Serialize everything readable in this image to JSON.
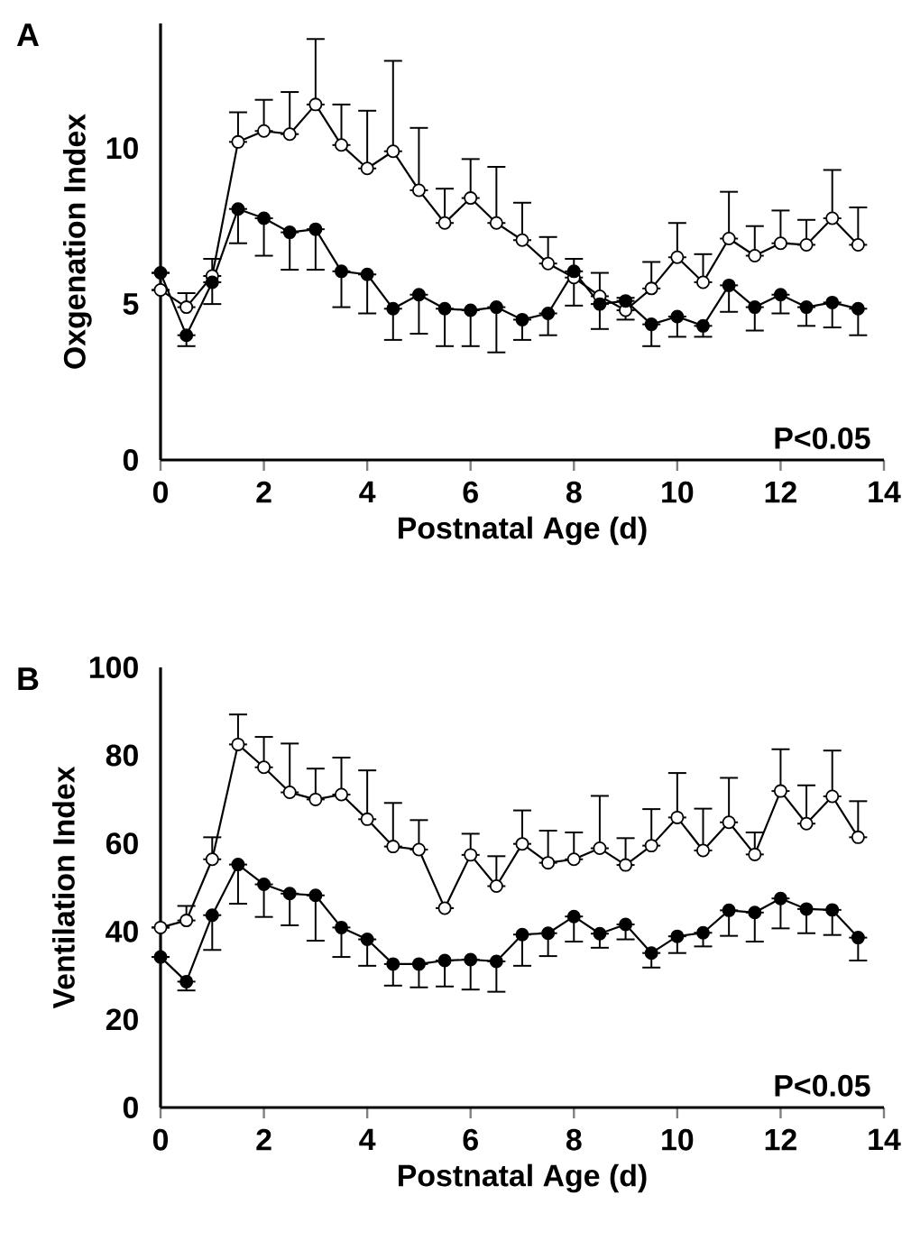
{
  "chart_data": [
    {
      "type": "line",
      "title": "A",
      "xlabel": "Postnatal Age (d)",
      "ylabel": "Oxgenation Index",
      "annotations": [
        "P<0.05"
      ],
      "marker": "circle",
      "line_style": "solid",
      "x": [
        0,
        0.5,
        1,
        1.5,
        2,
        2.5,
        3,
        3.5,
        4,
        4.5,
        5,
        5.5,
        6,
        6.5,
        7,
        7.5,
        8,
        8.5,
        9,
        9.5,
        10,
        10.5,
        11,
        11.5,
        12,
        12.5,
        13,
        13.5
      ],
      "xlim": [
        0,
        14
      ],
      "xticks": [
        0,
        2,
        4,
        6,
        8,
        10,
        12,
        14
      ],
      "ylim": [
        0,
        14
      ],
      "yticks": [
        0,
        5,
        10
      ],
      "series": [
        {
          "color": "#ffffff",
          "values": [
            5.45,
            4.9,
            5.9,
            10.2,
            10.55,
            10.45,
            11.4,
            10.1,
            9.35,
            9.9,
            8.65,
            7.6,
            8.4,
            7.6,
            7.05,
            6.3,
            5.85,
            5.25,
            4.8,
            5.5,
            6.5,
            5.7,
            7.1,
            6.55,
            6.95,
            6.9,
            7.75,
            6.9
          ],
          "errors": [
            null,
            [
              4.9,
              5.35
            ],
            [
              5.9,
              6.45
            ],
            [
              10.2,
              11.15
            ],
            [
              10.55,
              11.55
            ],
            [
              10.45,
              11.8
            ],
            [
              11.4,
              13.5
            ],
            [
              10.1,
              11.4
            ],
            [
              9.35,
              11.2
            ],
            [
              9.9,
              12.8
            ],
            [
              8.65,
              10.65
            ],
            [
              7.6,
              8.7
            ],
            [
              8.4,
              9.65
            ],
            [
              7.6,
              9.4
            ],
            [
              7.05,
              8.25
            ],
            [
              6.3,
              7.15
            ],
            [
              5.85,
              6.45
            ],
            [
              5.25,
              6.0
            ],
            [
              4.8,
              5.2
            ],
            [
              5.5,
              6.35
            ],
            [
              6.5,
              7.6
            ],
            [
              5.7,
              6.6
            ],
            [
              7.1,
              8.6
            ],
            [
              6.55,
              7.5
            ],
            [
              6.95,
              8.0
            ],
            [
              6.9,
              7.7
            ],
            [
              7.75,
              9.3
            ],
            [
              6.9,
              8.1
            ]
          ]
        },
        {
          "color": "#000000",
          "values": [
            6.0,
            4.0,
            5.7,
            8.05,
            7.75,
            7.3,
            7.4,
            6.05,
            5.95,
            4.85,
            5.3,
            4.85,
            4.8,
            4.9,
            4.5,
            4.7,
            6.05,
            5.0,
            5.1,
            4.35,
            4.6,
            4.3,
            5.6,
            4.9,
            5.3,
            4.9,
            5.05,
            4.85
          ],
          "errors": [
            null,
            [
              3.65,
              4.0
            ],
            [
              5.0,
              5.7
            ],
            [
              6.95,
              8.05
            ],
            [
              6.55,
              7.75
            ],
            [
              6.1,
              7.3
            ],
            [
              6.1,
              7.4
            ],
            [
              4.9,
              6.05
            ],
            [
              4.7,
              5.95
            ],
            [
              3.85,
              4.85
            ],
            [
              4.05,
              5.3
            ],
            [
              3.65,
              4.85
            ],
            [
              3.65,
              4.8
            ],
            [
              3.45,
              4.9
            ],
            [
              3.85,
              4.5
            ],
            [
              4.0,
              4.7
            ],
            [
              4.95,
              6.05
            ],
            [
              4.2,
              5.0
            ],
            [
              4.5,
              5.1
            ],
            [
              3.65,
              4.35
            ],
            [
              3.95,
              4.6
            ],
            [
              3.95,
              4.3
            ],
            [
              4.75,
              5.6
            ],
            [
              4.15,
              4.9
            ],
            [
              4.7,
              5.3
            ],
            [
              4.3,
              4.9
            ],
            [
              4.25,
              5.05
            ],
            [
              4.0,
              4.85
            ]
          ]
        }
      ]
    },
    {
      "type": "line",
      "title": "B",
      "xlabel": "Postnatal Age (d)",
      "ylabel": "Ventilation Index",
      "annotations": [
        "P<0.05"
      ],
      "marker": "circle",
      "line_style": "solid",
      "x": [
        0,
        0.5,
        1,
        1.5,
        2,
        2.5,
        3,
        3.5,
        4,
        4.5,
        5,
        5.5,
        6,
        6.5,
        7,
        7.5,
        8,
        8.5,
        9,
        9.5,
        10,
        10.5,
        11,
        11.5,
        12,
        12.5,
        13,
        13.5
      ],
      "xlim": [
        0,
        14
      ],
      "xticks": [
        0,
        2,
        4,
        6,
        8,
        10,
        12,
        14
      ],
      "ylim": [
        0,
        100
      ],
      "yticks": [
        0,
        20,
        40,
        60,
        80,
        100
      ],
      "series": [
        {
          "color": "#ffffff",
          "values": [
            40.9,
            42.5,
            56.4,
            82.5,
            77.3,
            71.6,
            70.0,
            71.1,
            65.5,
            59.3,
            58.6,
            45.3,
            57.4,
            50.3,
            59.9,
            55.6,
            56.4,
            58.9,
            55.1,
            59.5,
            65.9,
            58.4,
            64.8,
            57.5,
            71.9,
            64.5,
            70.7,
            61.4
          ],
          "errors": [
            null,
            [
              42.5,
              45.8
            ],
            [
              56.4,
              61.4
            ],
            [
              82.5,
              89.3
            ],
            [
              77.3,
              84.2
            ],
            [
              71.6,
              82.7
            ],
            [
              70.0,
              77.0
            ],
            [
              71.1,
              79.5
            ],
            [
              65.5,
              76.6
            ],
            [
              59.3,
              69.2
            ],
            [
              58.6,
              65.3
            ],
            null,
            [
              57.4,
              62.2
            ],
            [
              50.3,
              57.1
            ],
            [
              59.9,
              67.5
            ],
            [
              55.6,
              62.9
            ],
            [
              56.4,
              62.5
            ],
            [
              58.9,
              70.8
            ],
            [
              55.1,
              61.2
            ],
            [
              59.5,
              67.8
            ],
            [
              65.9,
              76.0
            ],
            [
              58.4,
              67.9
            ],
            [
              64.8,
              74.9
            ],
            [
              57.5,
              62.5
            ],
            [
              71.9,
              81.4
            ],
            [
              64.5,
              73.2
            ],
            [
              70.7,
              81.1
            ],
            [
              61.4,
              69.6
            ]
          ]
        },
        {
          "color": "#000000",
          "values": [
            34.2,
            28.6,
            43.7,
            55.2,
            50.7,
            48.6,
            48.2,
            40.9,
            38.2,
            32.6,
            32.6,
            33.4,
            33.6,
            33.2,
            39.3,
            39.6,
            43.4,
            39.5,
            41.6,
            35.1,
            38.9,
            39.7,
            44.8,
            44.3,
            47.5,
            45.1,
            44.9,
            38.6
          ],
          "errors": [
            null,
            [
              26.6,
              28.6
            ],
            [
              35.8,
              43.7
            ],
            [
              46.3,
              55.2
            ],
            [
              43.3,
              50.7
            ],
            [
              41.4,
              48.6
            ],
            [
              37.9,
              48.2
            ],
            [
              34.2,
              40.9
            ],
            [
              32.2,
              38.2
            ],
            [
              27.7,
              32.6
            ],
            [
              27.3,
              32.6
            ],
            [
              27.5,
              33.4
            ],
            [
              26.8,
              33.6
            ],
            [
              26.3,
              33.2
            ],
            [
              32.2,
              39.3
            ],
            [
              34.4,
              39.6
            ],
            [
              37.7,
              43.4
            ],
            [
              36.3,
              39.5
            ],
            [
              38.2,
              41.6
            ],
            [
              31.8,
              35.1
            ],
            [
              35.1,
              38.9
            ],
            [
              36.6,
              39.7
            ],
            [
              39.0,
              44.8
            ],
            [
              37.7,
              44.3
            ],
            [
              40.7,
              47.5
            ],
            [
              39.6,
              45.1
            ],
            [
              39.2,
              44.9
            ],
            [
              33.4,
              38.6
            ]
          ]
        }
      ]
    }
  ]
}
